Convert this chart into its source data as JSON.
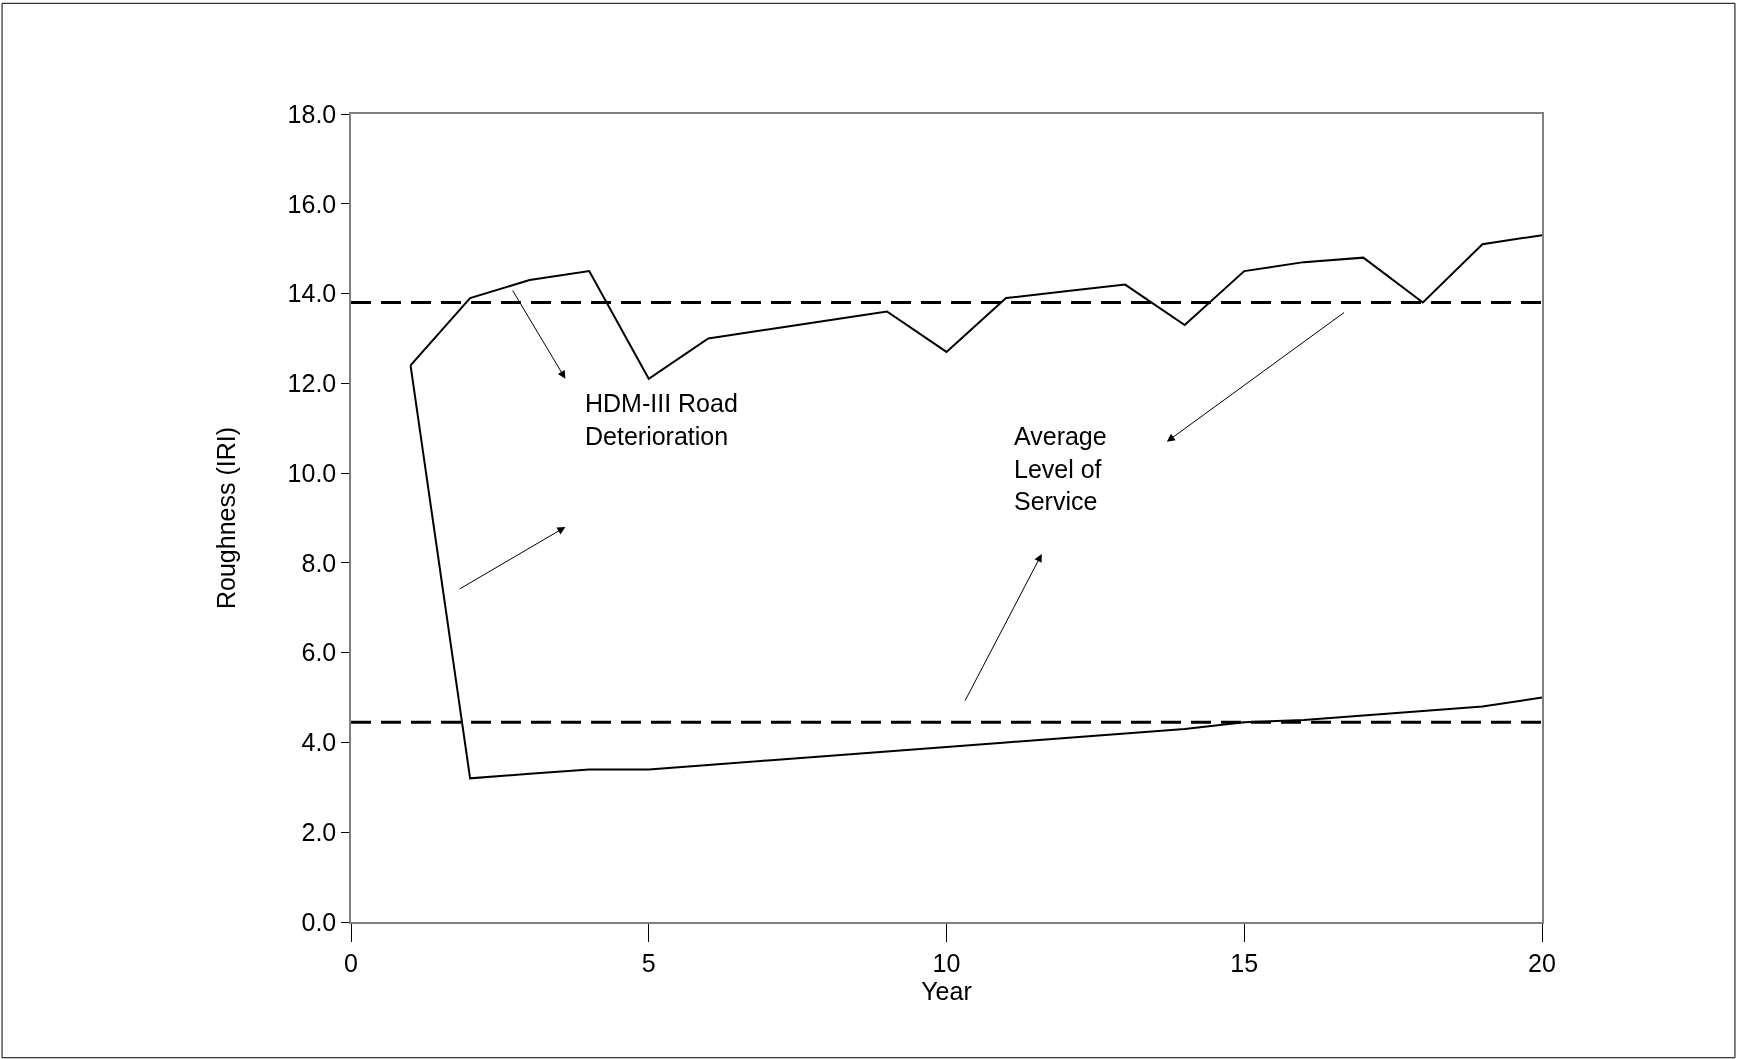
{
  "chart_data": {
    "type": "line",
    "xlabel": "Year",
    "ylabel": "Roughness (IRI)",
    "x": [
      1,
      2,
      3,
      4,
      5,
      6,
      7,
      8,
      9,
      10,
      11,
      12,
      13,
      14,
      15,
      16,
      17,
      18,
      19,
      20
    ],
    "series": [
      {
        "color": "#000000",
        "values": [
          12.4,
          13.9,
          14.3,
          14.5,
          12.1,
          13.0,
          13.2,
          13.4,
          13.6,
          12.7,
          13.9,
          14.05,
          14.2,
          13.3,
          14.5,
          14.7,
          14.8,
          13.8,
          15.1,
          15.3
        ]
      },
      {
        "color": "#000000",
        "values": [
          12.4,
          3.2,
          3.3,
          3.4,
          3.4,
          3.5,
          3.6,
          3.7,
          3.8,
          3.9,
          4.0,
          4.1,
          4.2,
          4.3,
          4.45,
          4.5,
          4.6,
          4.7,
          4.8,
          5.0
        ]
      }
    ],
    "ref_lines": [
      {
        "axis": "y",
        "value": 13.8,
        "color": "#000000",
        "line_style": "dashed"
      },
      {
        "axis": "y",
        "value": 4.45,
        "color": "#000000",
        "line_style": "dashed"
      }
    ],
    "annotations": [
      "HDM-III Road\nDeterioration",
      "Average\nLevel of\nService"
    ],
    "xlim": [
      0,
      20
    ],
    "xticks": [
      0,
      5,
      10,
      15,
      20
    ],
    "ylim": [
      0,
      18
    ],
    "yticks": [
      {
        "value": 0,
        "label": "0.0"
      },
      {
        "value": 2,
        "label": "2.0"
      },
      {
        "value": 4,
        "label": "4.0"
      },
      {
        "value": 6,
        "label": "6.0"
      },
      {
        "value": 8,
        "label": "8.0"
      },
      {
        "value": 10,
        "label": "10.0"
      },
      {
        "value": 12,
        "label": "12.0"
      },
      {
        "value": 14,
        "label": "14.0"
      },
      {
        "value": 16,
        "label": "16.0"
      },
      {
        "value": 18,
        "label": "18.0"
      }
    ],
    "marker": "none",
    "line_style": "solid"
  }
}
